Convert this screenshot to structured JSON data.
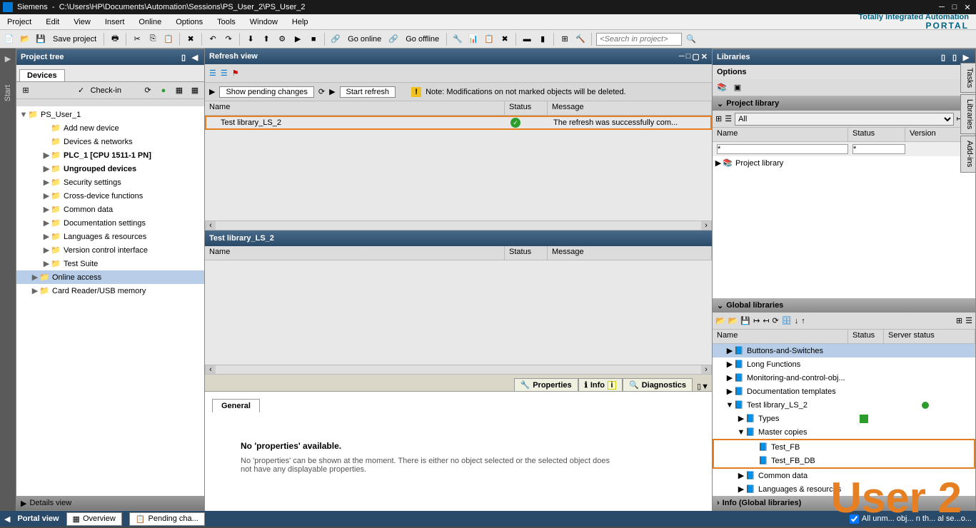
{
  "titlebar": {
    "app": "Siemens",
    "path": "C:\\Users\\HP\\Documents\\Automation\\Sessions\\PS_User_2\\PS_User_2"
  },
  "menubar": {
    "items": [
      "Project",
      "Edit",
      "View",
      "Insert",
      "Online",
      "Options",
      "Tools",
      "Window",
      "Help"
    ],
    "brand_line1": "Totally Integrated Automation",
    "brand_line2": "PORTAL"
  },
  "toolbar": {
    "save_project": "Save project",
    "go_online": "Go online",
    "go_offline": "Go offline",
    "search_placeholder": "<Search in project>"
  },
  "start_tab": "Start",
  "project_tree": {
    "title": "Project tree",
    "tab": "Devices",
    "checkin": "Check-in",
    "root": "PS_User_1",
    "items": [
      {
        "label": "Add new device",
        "indent": 2
      },
      {
        "label": "Devices & networks",
        "indent": 2
      },
      {
        "label": "PLC_1 [CPU 1511-1 PN]",
        "indent": 2,
        "bold": true,
        "expandable": true
      },
      {
        "label": "Ungrouped devices",
        "indent": 2,
        "bold": true,
        "expandable": true
      },
      {
        "label": "Security settings",
        "indent": 2,
        "expandable": true
      },
      {
        "label": "Cross-device functions",
        "indent": 2,
        "expandable": true
      },
      {
        "label": "Common data",
        "indent": 2,
        "expandable": true
      },
      {
        "label": "Documentation settings",
        "indent": 2,
        "expandable": true
      },
      {
        "label": "Languages & resources",
        "indent": 2,
        "expandable": true
      },
      {
        "label": "Version control interface",
        "indent": 2,
        "expandable": true
      },
      {
        "label": "Test Suite",
        "indent": 2,
        "expandable": true
      },
      {
        "label": "Online access",
        "indent": 1,
        "sel": true,
        "expandable": true
      },
      {
        "label": "Card Reader/USB memory",
        "indent": 1,
        "expandable": true
      }
    ]
  },
  "refresh_view": {
    "title": "Refresh view",
    "btn_pending": "Show pending changes",
    "btn_start": "Start refresh",
    "note": "Note: Modifications on not marked objects will be deleted.",
    "cols": {
      "name": "Name",
      "status": "Status",
      "message": "Message"
    },
    "row": {
      "name": "Test library_LS_2",
      "message": "The refresh was successfully com..."
    },
    "lower_title": "Test library_LS_2"
  },
  "properties": {
    "tabs": {
      "properties": "Properties",
      "info": "Info",
      "diagnostics": "Diagnostics"
    },
    "general_tab": "General",
    "title": "No 'properties' available.",
    "msg": "No 'properties' can be shown at the moment. There is either no object selected or the selected object does not have any displayable properties."
  },
  "libraries": {
    "title": "Libraries",
    "options": "Options",
    "project_library": "Project library",
    "filter_all": "All",
    "cols": {
      "name": "Name",
      "status": "Status",
      "version": "Version"
    },
    "proj_lib_row": "Project library",
    "global_libraries": "Global libraries",
    "gcols": {
      "name": "Name",
      "status": "Status",
      "server": "Server status"
    },
    "gitems": [
      {
        "label": "Buttons-and-Switches",
        "indent": 1,
        "expandable": true,
        "sel": true
      },
      {
        "label": "Long Functions",
        "indent": 1,
        "expandable": true
      },
      {
        "label": "Monitoring-and-control-obj...",
        "indent": 1,
        "expandable": true
      },
      {
        "label": "Documentation templates",
        "indent": 1,
        "expandable": true
      },
      {
        "label": "Test library_LS_2",
        "indent": 1,
        "expanded": true,
        "dot": true
      },
      {
        "label": "Types",
        "indent": 2,
        "expandable": true,
        "sq": true
      },
      {
        "label": "Master copies",
        "indent": 2,
        "expanded": true
      },
      {
        "label": "Test_FB",
        "indent": 3,
        "hl": true
      },
      {
        "label": "Test_FB_DB",
        "indent": 3,
        "hl": true
      },
      {
        "label": "Common data",
        "indent": 2,
        "expandable": true
      },
      {
        "label": "Languages & resources",
        "indent": 2,
        "expandable": true
      }
    ],
    "info": "Info (Global libraries)"
  },
  "right_tabs": [
    "Tasks",
    "Libraries",
    "Add-ins"
  ],
  "details_view": "Details view",
  "statusbar": {
    "portal_view": "Portal view",
    "overview": "Overview",
    "pending": "Pending cha...",
    "right": "All unm...      obj...   n th...   al  se...o..."
  },
  "user2": "User 2"
}
